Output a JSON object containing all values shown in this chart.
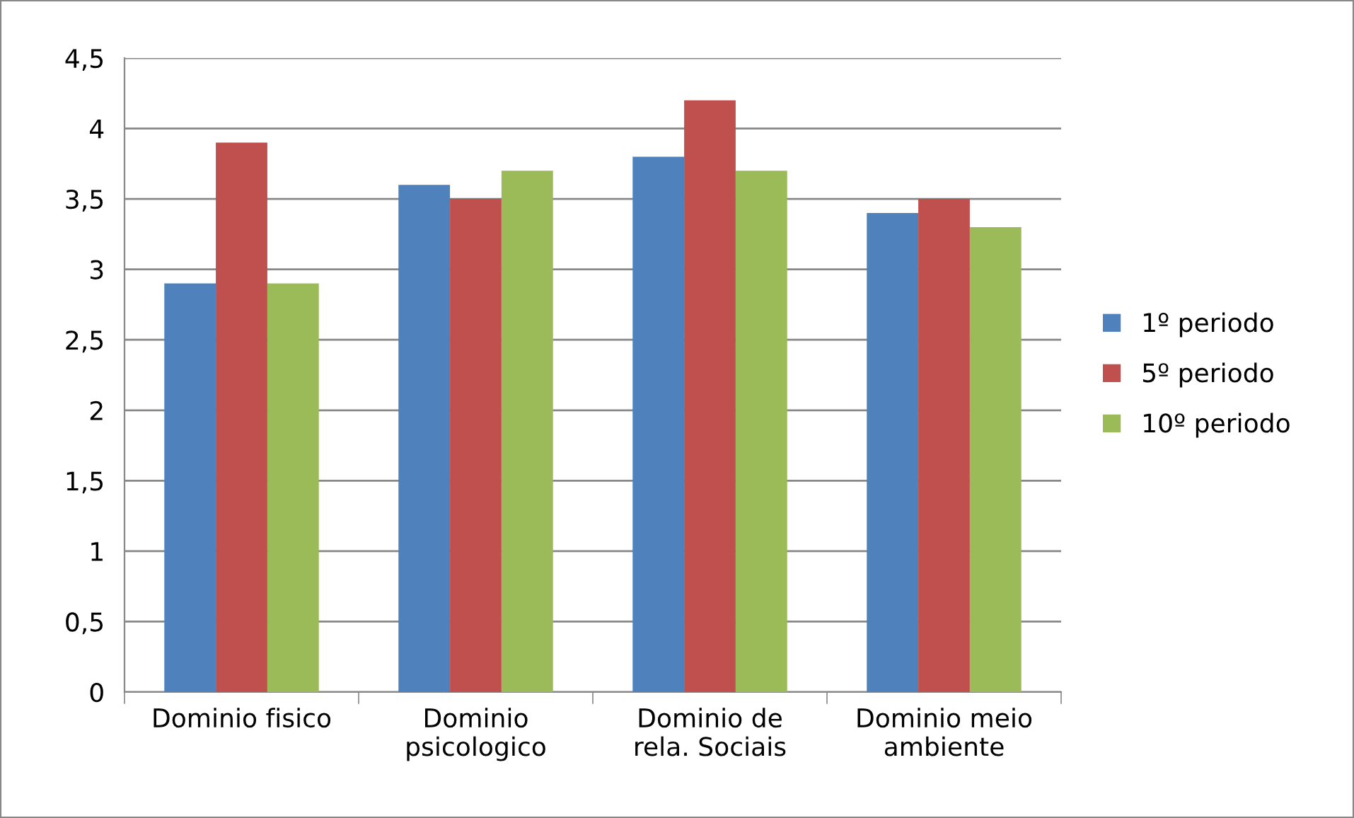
{
  "chart_data": {
    "type": "bar",
    "categories": [
      "Dominio fisico",
      "Dominio\npsicologico",
      "Dominio de\nrela. Sociais",
      "Dominio meio\nambiente"
    ],
    "series": [
      {
        "name": "1º periodo",
        "color": "#4f81bd",
        "values": [
          2.9,
          3.6,
          3.8,
          3.4
        ]
      },
      {
        "name": "5º periodo",
        "color": "#c0504d",
        "values": [
          3.9,
          3.5,
          4.2,
          3.5
        ]
      },
      {
        "name": "10º periodo",
        "color": "#9bbb59",
        "values": [
          2.9,
          3.7,
          3.7,
          3.3
        ]
      }
    ],
    "ylim": [
      0,
      4.5
    ],
    "yticks": [
      0,
      {
        "value": 0.5,
        "label": "0,5"
      },
      1,
      {
        "value": 1.5,
        "label": "1,5"
      },
      2,
      {
        "value": 2.5,
        "label": "2,5"
      },
      3,
      {
        "value": 3.5,
        "label": "3,5"
      },
      4,
      {
        "value": 4.5,
        "label": "4,5"
      }
    ],
    "grid": "y",
    "legend": "right"
  }
}
